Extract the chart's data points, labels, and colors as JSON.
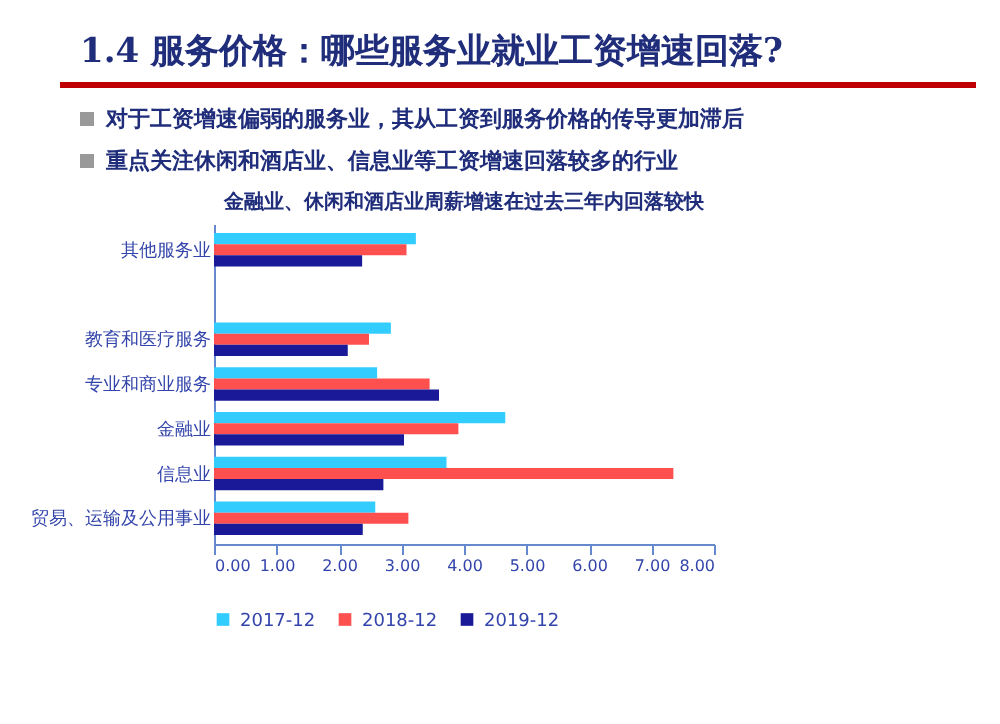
{
  "chart_data": {
    "type": "bar",
    "orientation": "horizontal",
    "title": "1.4 服务价格：哪些服务业就业工资增速回落?",
    "subtitle": "金融业、休闲和酒店业周薪增速在过去三年内回落较快",
    "annotations": [
      "对于工资增速偏弱的服务业，其从工资到服务价格的传导更加滞后",
      "重点关注休闲和酒店业、信息业等工资增速回落较多的行业"
    ],
    "categories": [
      "其他服务业",
      null,
      "教育和医疗服务",
      "专业和商业服务",
      "金融业",
      "信息业",
      "贸易、运输及公用事业"
    ],
    "series": [
      {
        "name": "2017-12",
        "color": "#33ccff",
        "values": [
          3.23,
          null,
          2.83,
          2.61,
          4.66,
          3.72,
          2.58
        ]
      },
      {
        "name": "2018-12",
        "color": "#ff5050",
        "values": [
          3.08,
          null,
          2.48,
          3.45,
          3.91,
          7.35,
          3.11
        ]
      },
      {
        "name": "2019-12",
        "color": "#1a1a99",
        "values": [
          2.37,
          null,
          2.14,
          3.6,
          3.04,
          2.71,
          2.38
        ]
      }
    ],
    "xlim": [
      0,
      8
    ],
    "xticks": [
      {
        "value": 0,
        "label": "0.00"
      },
      {
        "value": 1,
        "label": "1.00"
      },
      {
        "value": 2,
        "label": "2.00"
      },
      {
        "value": 3,
        "label": "3.00"
      },
      {
        "value": 4,
        "label": "4.00"
      },
      {
        "value": 5,
        "label": "5.00"
      },
      {
        "value": 6,
        "label": "6.00"
      },
      {
        "value": 7,
        "label": "7.00"
      },
      {
        "value": 8,
        "label": "8.00"
      }
    ],
    "grid": false,
    "legend": "bottom"
  }
}
